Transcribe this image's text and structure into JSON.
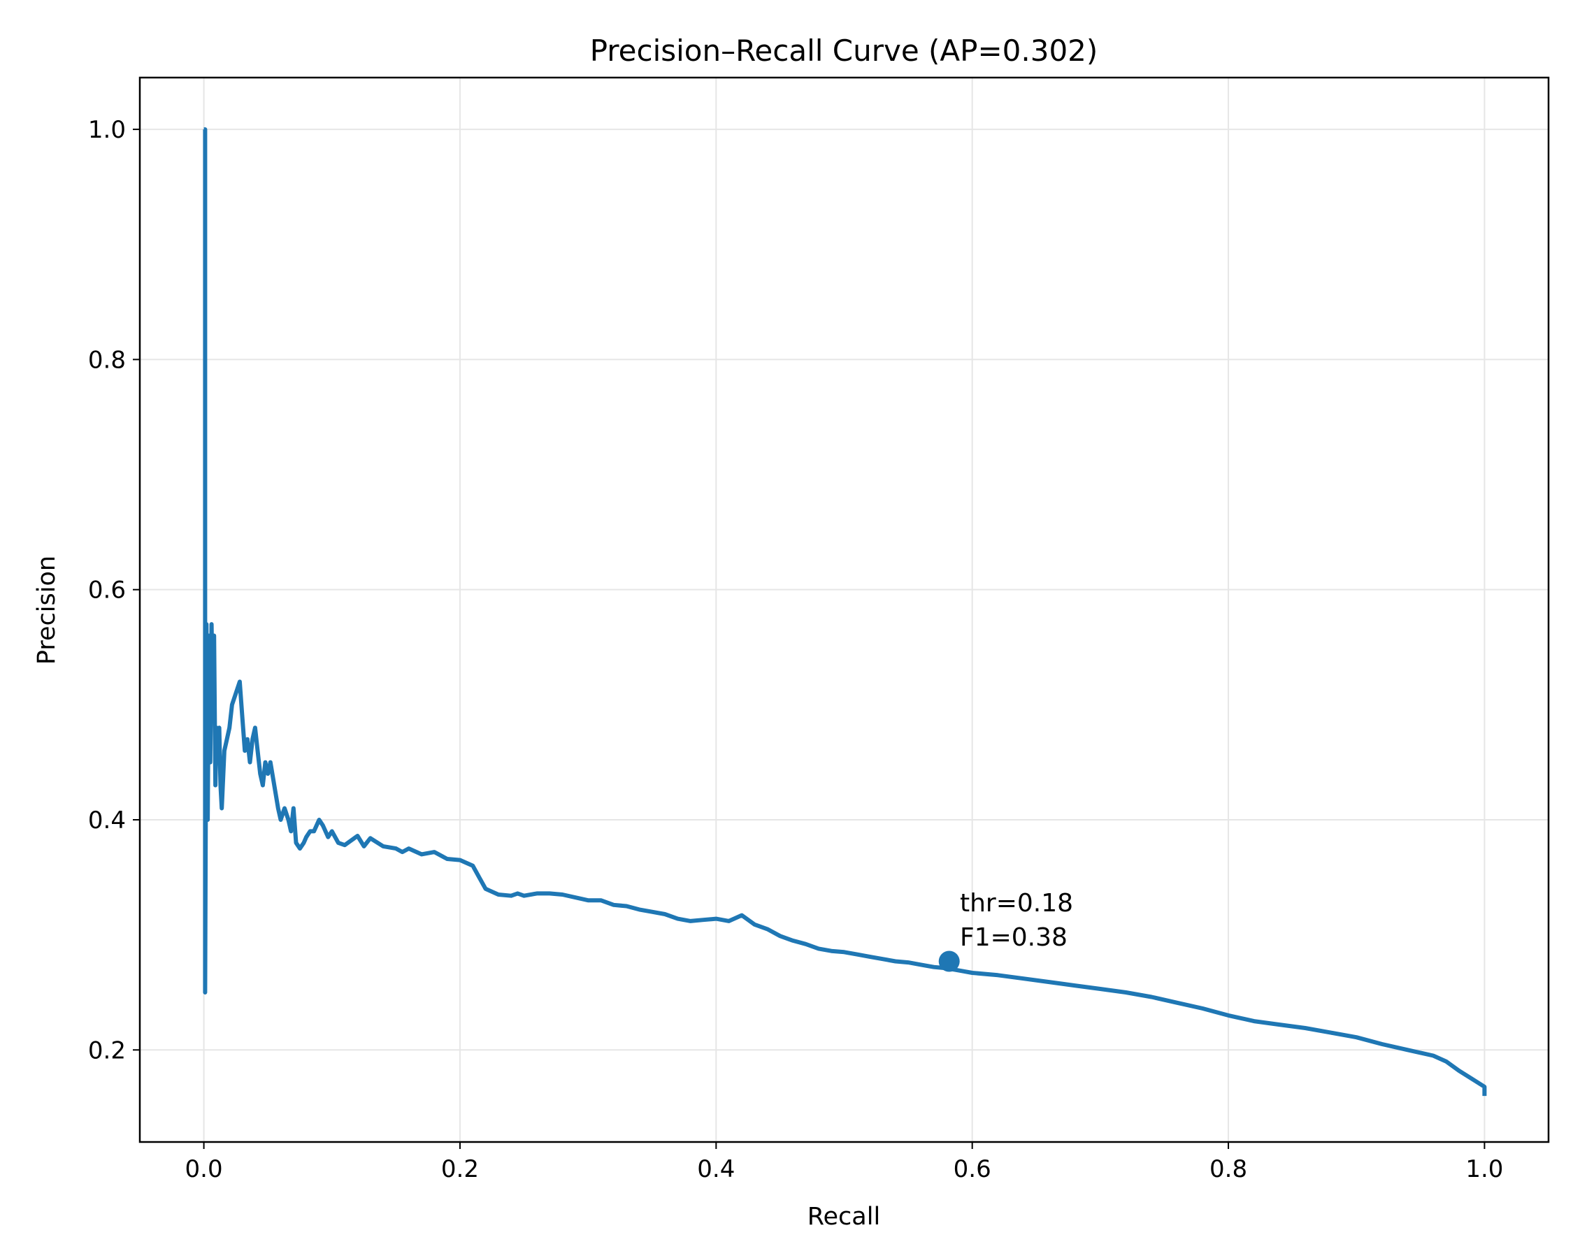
{
  "chart_data": {
    "type": "line",
    "title": "Precision–Recall Curve (AP=0.302)",
    "xlabel": "Recall",
    "ylabel": "Precision",
    "xlim": [
      -0.05,
      1.05
    ],
    "ylim": [
      0.12,
      1.045
    ],
    "grid": true,
    "xticks": [
      0.0,
      0.2,
      0.4,
      0.6,
      0.8,
      1.0
    ],
    "xtick_labels": [
      "0.0",
      "0.2",
      "0.4",
      "0.6",
      "0.8",
      "1.0"
    ],
    "yticks": [
      0.2,
      0.4,
      0.6,
      0.8,
      1.0
    ],
    "ytick_labels": [
      "0.2",
      "0.4",
      "0.6",
      "0.8",
      "1.0"
    ],
    "colors": {
      "series": "#1f77b4"
    },
    "series": [
      {
        "x": [
          0.0,
          0.001,
          0.001,
          0.002,
          0.003,
          0.004,
          0.005,
          0.006,
          0.007,
          0.008,
          0.009,
          0.01,
          0.011,
          0.012,
          0.013,
          0.014,
          0.016,
          0.018,
          0.02,
          0.022,
          0.025,
          0.028,
          0.03,
          0.032,
          0.034,
          0.036,
          0.038,
          0.04,
          0.042,
          0.044,
          0.046,
          0.048,
          0.05,
          0.052,
          0.055,
          0.058,
          0.06,
          0.063,
          0.066,
          0.068,
          0.07,
          0.072,
          0.075,
          0.078,
          0.08,
          0.083,
          0.086,
          0.09,
          0.093,
          0.097,
          0.1,
          0.105,
          0.11,
          0.115,
          0.12,
          0.125,
          0.13,
          0.14,
          0.15,
          0.155,
          0.16,
          0.17,
          0.18,
          0.19,
          0.2,
          0.21,
          0.215,
          0.22,
          0.23,
          0.24,
          0.245,
          0.25,
          0.26,
          0.27,
          0.28,
          0.3,
          0.31,
          0.32,
          0.33,
          0.34,
          0.35,
          0.36,
          0.37,
          0.38,
          0.39,
          0.4,
          0.41,
          0.42,
          0.43,
          0.44,
          0.45,
          0.46,
          0.47,
          0.48,
          0.49,
          0.5,
          0.51,
          0.52,
          0.53,
          0.54,
          0.55,
          0.56,
          0.57,
          0.58,
          0.59,
          0.6,
          0.62,
          0.64,
          0.66,
          0.68,
          0.7,
          0.72,
          0.74,
          0.76,
          0.78,
          0.8,
          0.82,
          0.84,
          0.86,
          0.88,
          0.9,
          0.92,
          0.94,
          0.96,
          0.97,
          0.98,
          0.99,
          1.0,
          1.0
        ],
        "y": [
          1.0,
          1.0,
          0.25,
          0.57,
          0.4,
          0.56,
          0.45,
          0.57,
          0.5,
          0.56,
          0.43,
          0.48,
          0.45,
          0.48,
          0.43,
          0.41,
          0.46,
          0.47,
          0.48,
          0.5,
          0.51,
          0.52,
          0.49,
          0.46,
          0.47,
          0.45,
          0.47,
          0.48,
          0.46,
          0.44,
          0.43,
          0.45,
          0.44,
          0.45,
          0.43,
          0.41,
          0.4,
          0.41,
          0.4,
          0.39,
          0.41,
          0.38,
          0.375,
          0.38,
          0.385,
          0.39,
          0.39,
          0.4,
          0.395,
          0.385,
          0.39,
          0.38,
          0.378,
          0.382,
          0.386,
          0.377,
          0.384,
          0.377,
          0.375,
          0.372,
          0.375,
          0.37,
          0.372,
          0.366,
          0.365,
          0.36,
          0.35,
          0.34,
          0.335,
          0.334,
          0.336,
          0.334,
          0.336,
          0.336,
          0.335,
          0.33,
          0.33,
          0.326,
          0.325,
          0.322,
          0.32,
          0.318,
          0.314,
          0.312,
          0.313,
          0.314,
          0.312,
          0.317,
          0.309,
          0.305,
          0.299,
          0.295,
          0.292,
          0.288,
          0.286,
          0.285,
          0.283,
          0.281,
          0.279,
          0.277,
          0.276,
          0.274,
          0.272,
          0.271,
          0.269,
          0.267,
          0.265,
          0.262,
          0.259,
          0.256,
          0.253,
          0.25,
          0.246,
          0.241,
          0.236,
          0.23,
          0.225,
          0.222,
          0.219,
          0.215,
          0.211,
          0.205,
          0.2,
          0.195,
          0.19,
          0.182,
          0.175,
          0.168,
          0.16
        ]
      }
    ],
    "highlight_point": {
      "x": 0.582,
      "y": 0.277
    },
    "annotation": [
      "thr=0.18",
      "F1=0.38"
    ]
  }
}
